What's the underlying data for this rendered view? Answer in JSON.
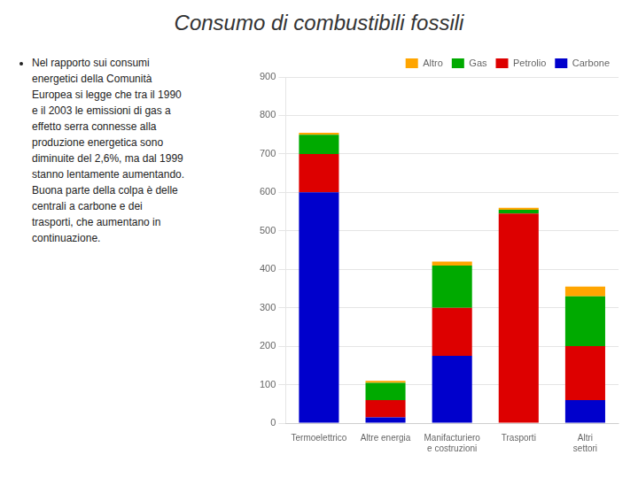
{
  "chart_data": {
    "type": "bar",
    "title": "Consumo di combustibili fossili",
    "annotations": [
      "Nel rapporto sui consumi\nenergetici della Comunità\nEuropea si legge che tra il 1990\ne il 2003 le emissioni di gas a\neffetto serra connesse alla\nproduzione energetica sono\ndiminuite del 2,6%, ma dal 1999\nstanno lentamente aumentando.\nBuona parte della colpa è delle\ncentrali a carbone e dei\ntrasporti, che aumentano in\ncontinuazione."
    ],
    "categories": [
      "Termoelettrico",
      "Altre energia",
      "Manifacturiero\ne costruzioni",
      "Trasporti",
      "Altri\nsettori"
    ],
    "series": [
      {
        "name": "Carbone",
        "color": "#0000CC",
        "values": [
          600,
          15,
          175,
          0,
          60
        ]
      },
      {
        "name": "Petrolio",
        "color": "#DD0000",
        "values": [
          100,
          45,
          125,
          545,
          140
        ]
      },
      {
        "name": "Gas",
        "color": "#00AA00",
        "values": [
          50,
          45,
          110,
          10,
          130
        ]
      },
      {
        "name": "Altro",
        "color": "#FFA500",
        "values": [
          5,
          5,
          10,
          5,
          25
        ]
      }
    ],
    "stacked": true,
    "ylim": [
      0,
      900
    ],
    "yticks": [
      0,
      100,
      200,
      300,
      400,
      500,
      600,
      700,
      800,
      900
    ],
    "grid": true,
    "legend": "upper right"
  }
}
